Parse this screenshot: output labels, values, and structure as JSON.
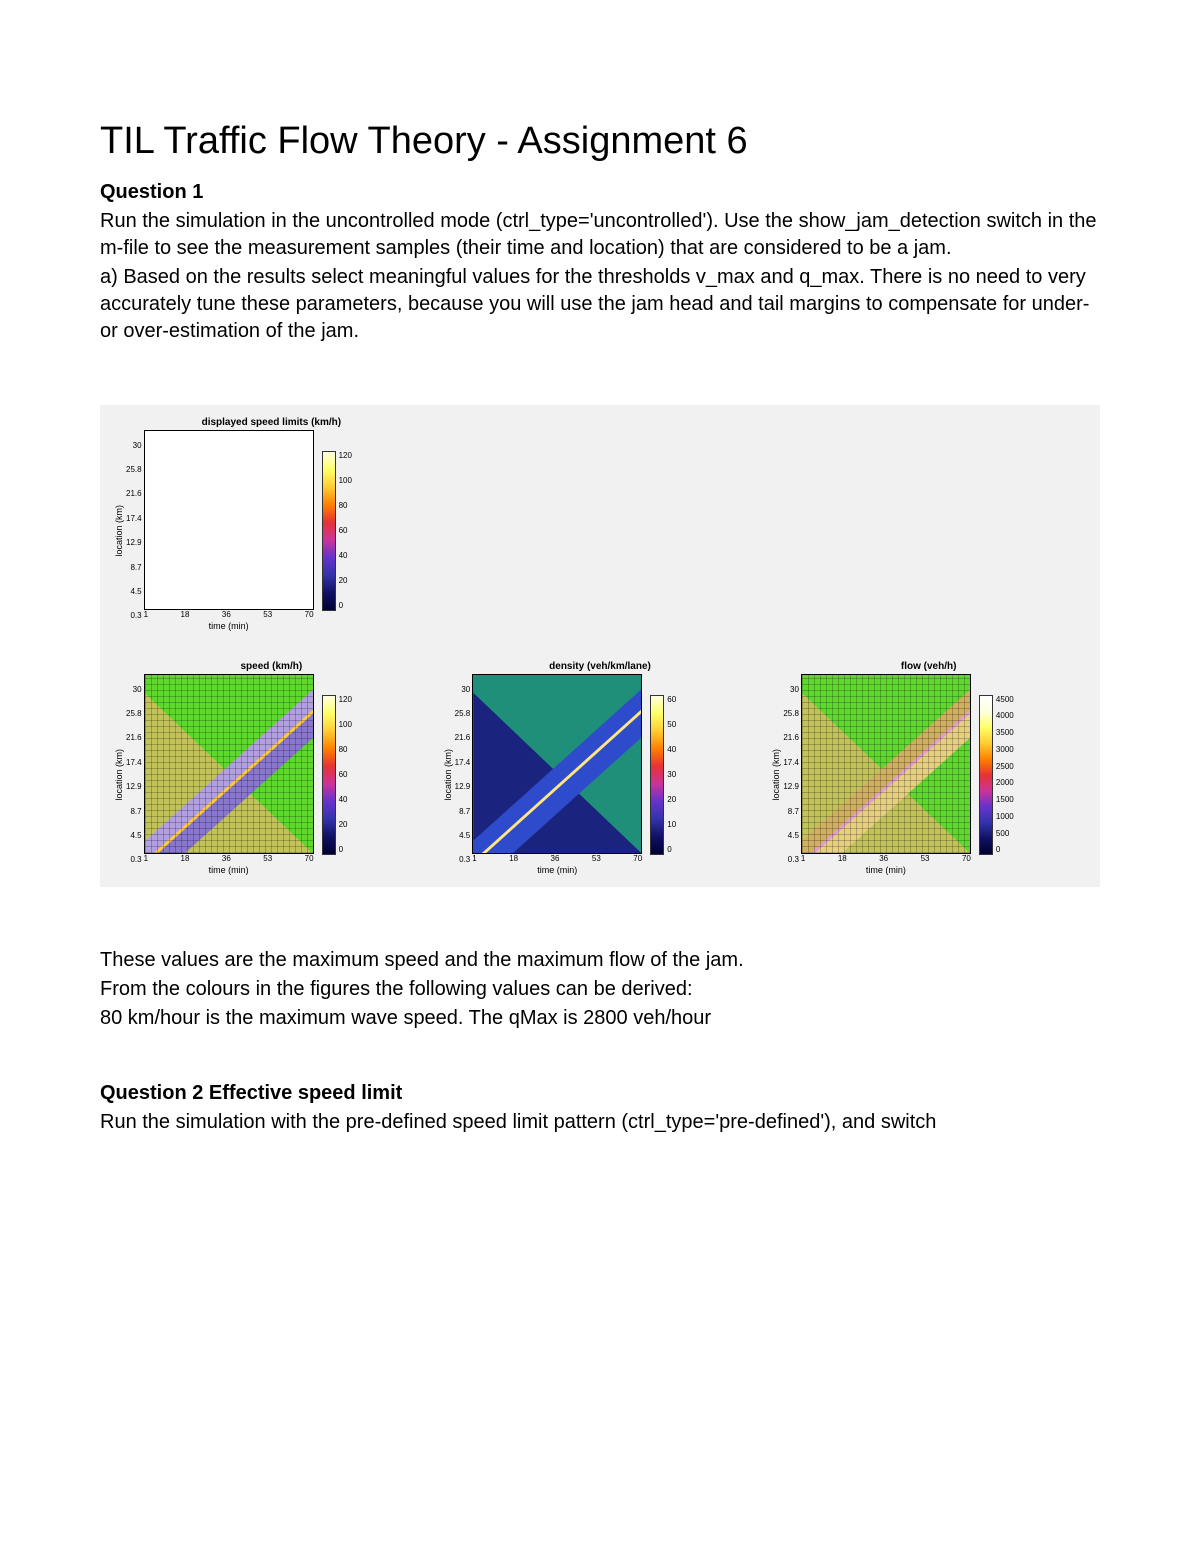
{
  "title": "TIL Traffic Flow Theory - Assignment 6",
  "q1": {
    "heading": "Question 1",
    "p1": "Run the simulation in the uncontrolled mode (ctrl_type='uncontrolled'). Use the show_jam_detection switch in the m-file to see the measurement samples (their time and location) that are considered to be a jam.",
    "p2": "a) Based on the results select meaningful values for the thresholds v_max and q_max. There is no need to very accurately tune these parameters, because you will use the jam head and tail margins to compensate for under- or over-estimation of the jam."
  },
  "answer": {
    "l1": "These values are the maximum speed and the maximum flow of the jam.",
    "l2": "From the colours in the figures the following values can be derived:",
    "l3": "80 km/hour is the maximum wave speed. The qMax is 2800 veh/hour"
  },
  "q2": {
    "heading": "Question 2 Effective speed limit",
    "p1": "Run the simulation with the pre-defined speed limit pattern (ctrl_type='pre-defined'), and switch"
  },
  "axes": {
    "ylabel": "location (km)",
    "xlabel": "time (min)",
    "yticks": [
      "30",
      "25.8",
      "21.6",
      "17.4",
      "12.9",
      "8.7",
      "4.5",
      "0.3"
    ],
    "xticks": [
      "1",
      "18",
      "36",
      "53",
      "70"
    ]
  },
  "plots": {
    "displayed": {
      "title": "displayed speed limits (km/h)",
      "cbar_ticks": [
        "120",
        "100",
        "80",
        "60",
        "40",
        "20",
        "0"
      ],
      "cbar_gradient": "linear-gradient(to bottom, #ffffe0, #ffff66, #ffcc33, #ff8000, #e63333, #cc3399, #6633cc, #3333aa, #111166, #000033)"
    },
    "speed": {
      "title": "speed (km/h)",
      "cbar_ticks": [
        "120",
        "100",
        "80",
        "60",
        "40",
        "20",
        "0"
      ],
      "cbar_gradient": "linear-gradient(to bottom, #ffffe0, #ffff66, #ffcc33, #ff8000, #e63333, #cc3399, #6633cc, #3333aa, #111166, #000033)",
      "bg_free": "#5fd82e",
      "band_upper_color": "#b19fe0",
      "band_jam_color": "#ffcc33",
      "band_lower_color": "#8877cc",
      "below_color": "#c2c25a",
      "rotate_deg": -42
    },
    "density": {
      "title": "density (veh/km/lane)",
      "cbar_ticks": [
        "60",
        "50",
        "40",
        "30",
        "20",
        "10",
        "0"
      ],
      "cbar_gradient": "linear-gradient(to bottom, #ffffe0, #ffff66, #ffcc33, #ff8000, #e63333, #cc3399, #6633cc, #3333aa, #111166, #000033)",
      "bg_free": "#1f8f7a",
      "band_upper_color": "#2e4bcc",
      "band_jam_color": "#ffe680",
      "band_lower_color": "#2e4bcc",
      "below_color": "#1a237e",
      "rotate_deg": -42
    },
    "flow": {
      "title": "flow (veh/h)",
      "cbar_ticks": [
        "4500",
        "4000",
        "3500",
        "3000",
        "2500",
        "2000",
        "1500",
        "1000",
        "500",
        "0"
      ],
      "cbar_gradient": "linear-gradient(to bottom, #ffffff, #ffffe0, #ffff66, #ffcc33, #ff8000, #e63333, #cc3399, #6633cc, #3333aa, #111166, #000033)",
      "bg_free": "#5fd82e",
      "band_upper_color": "#d0b060",
      "band_jam_color": "#e69ccf",
      "band_lower_color": "#e6d080",
      "below_color": "#c2c25a",
      "rotate_deg": -42
    }
  }
}
